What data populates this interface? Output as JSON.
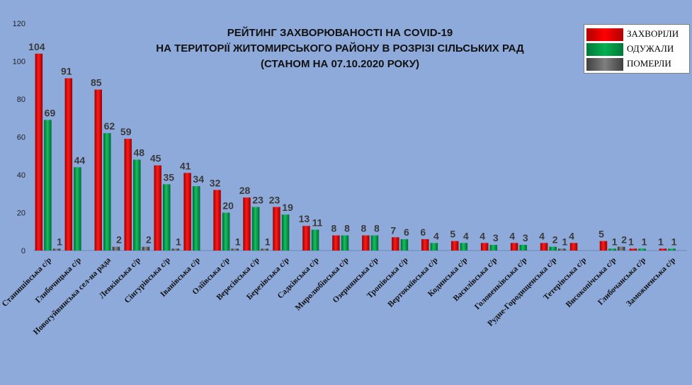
{
  "chart_data": {
    "type": "bar",
    "title_lines": [
      "РЕЙТИНГ ЗАХВОРЮВАНОСТІ НА COVID-19",
      "НА ТЕРИТОРІЇ ЖИТОМИРСЬКОГО РАЙОНУ В РОЗРІЗІ СІЛЬСЬКИХ РАД",
      "(СТАНОМ НА 07.10.2020 РОКУ)"
    ],
    "ylim": [
      0,
      120
    ],
    "yticks": [
      0,
      20,
      40,
      60,
      80,
      100,
      120
    ],
    "grid": false,
    "legend_position": "top-right",
    "categories": [
      "Станишівська с/р",
      "Глибочицька с/р",
      "Новогуйвинська сел-на рада",
      "Левківська с/р",
      "Сінгурівська с/р",
      "Іванівська с/р",
      "Оліївська с/р",
      "Вересівська с/р",
      "Березівська с/р",
      "Садківська с/р",
      "Миролюбівська с/р",
      "Озернянська с/р",
      "Тропівська с/р",
      "Вертокиївська с/р",
      "Кодинська с/р",
      "Василівська с/р",
      "Головенківська с/р",
      "Рудне-Городищенська с/р",
      "Тетерівська с/р",
      "Високопічська с/р",
      "Глибочанська с/р",
      "Заможненська с/р"
    ],
    "series": [
      {
        "name": "ЗАХВОРІЛИ",
        "color": "#ff0000",
        "values": [
          104,
          91,
          85,
          59,
          45,
          41,
          32,
          28,
          23,
          13,
          8,
          8,
          7,
          6,
          5,
          4,
          4,
          4,
          4,
          5,
          1,
          1
        ]
      },
      {
        "name": "ОДУЖАЛИ",
        "color": "#00b050",
        "values": [
          69,
          44,
          62,
          48,
          35,
          34,
          20,
          23,
          19,
          11,
          8,
          8,
          6,
          4,
          4,
          3,
          3,
          2,
          null,
          1,
          1,
          1
        ]
      },
      {
        "name": "ПОМЕРЛИ",
        "color": "#595959",
        "values": [
          1,
          null,
          2,
          2,
          1,
          null,
          1,
          1,
          null,
          null,
          null,
          null,
          null,
          null,
          null,
          null,
          null,
          1,
          null,
          2,
          null,
          null
        ]
      }
    ]
  }
}
